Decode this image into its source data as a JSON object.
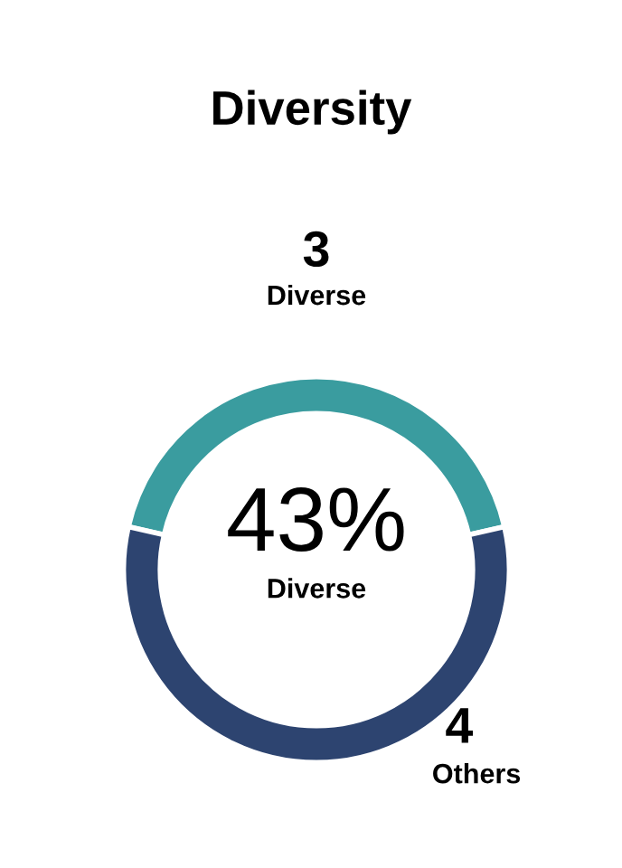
{
  "chart_data": {
    "type": "donut",
    "title": "Diversity",
    "categories": [
      "Diverse",
      "Others"
    ],
    "values": [
      3,
      4
    ],
    "colors": [
      "#3a9c9f",
      "#2d4470"
    ],
    "data_labels": true,
    "annotations": [
      "43%",
      "Diverse"
    ]
  }
}
